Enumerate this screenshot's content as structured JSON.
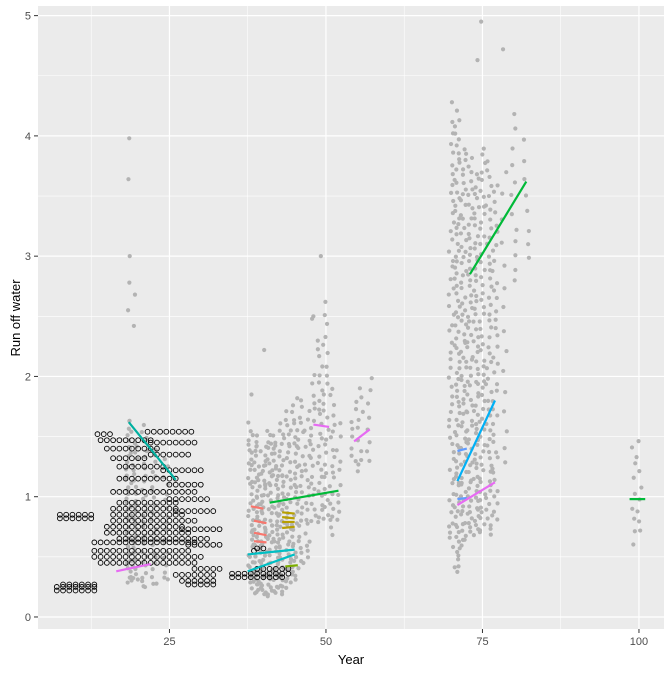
{
  "chart_data": {
    "type": "scatter",
    "title": "",
    "xlabel": "Year",
    "ylabel": "Run off water",
    "xlim": [
      4,
      104
    ],
    "ylim": [
      -0.1,
      5.08
    ],
    "x_ticks": [
      25,
      50,
      75,
      100
    ],
    "y_ticks": [
      0,
      1,
      2,
      3,
      4,
      5
    ],
    "grid": true,
    "legend": "none",
    "colors": {
      "panel_background": "#ebebeb",
      "gridline": "#ffffff",
      "grey_points": "#b3b3b3",
      "open_points": "#000000"
    },
    "grey_point_columns": [
      {
        "x": 18.5,
        "ymin": 0.28,
        "ymax": 1.65,
        "n": 44,
        "outliers": [
          3.98,
          3.64,
          3.0,
          2.78,
          2.55
        ]
      },
      {
        "x": 19.5,
        "ymin": 0.3,
        "ymax": 1.45,
        "n": 30,
        "outliers": [
          2.68,
          2.42
        ]
      },
      {
        "x": 21.0,
        "ymin": 0.24,
        "ymax": 1.6,
        "n": 30,
        "outliers": []
      },
      {
        "x": 22.5,
        "ymin": 0.26,
        "ymax": 1.4,
        "n": 22,
        "outliers": []
      },
      {
        "x": 24.5,
        "ymin": 0.3,
        "ymax": 1.3,
        "n": 18,
        "outliers": []
      },
      {
        "x": 38.0,
        "ymin": 0.25,
        "ymax": 1.6,
        "n": 40,
        "outliers": [
          1.85
        ]
      },
      {
        "x": 39.0,
        "ymin": 0.2,
        "ymax": 1.5,
        "n": 45,
        "outliers": []
      },
      {
        "x": 40.0,
        "ymin": 0.18,
        "ymax": 1.4,
        "n": 45,
        "outliers": [
          2.22
        ]
      },
      {
        "x": 41.0,
        "ymin": 0.18,
        "ymax": 1.55,
        "n": 40,
        "outliers": []
      },
      {
        "x": 42.0,
        "ymin": 0.2,
        "ymax": 1.5,
        "n": 40,
        "outliers": []
      },
      {
        "x": 43.0,
        "ymin": 0.2,
        "ymax": 1.6,
        "n": 40,
        "outliers": []
      },
      {
        "x": 44.0,
        "ymin": 0.25,
        "ymax": 1.7,
        "n": 35,
        "outliers": []
      },
      {
        "x": 45.0,
        "ymin": 0.3,
        "ymax": 1.8,
        "n": 35,
        "outliers": []
      },
      {
        "x": 46.0,
        "ymin": 0.4,
        "ymax": 1.8,
        "n": 25,
        "outliers": []
      },
      {
        "x": 47.0,
        "ymin": 0.5,
        "ymax": 1.7,
        "n": 20,
        "outliers": []
      },
      {
        "x": 48.0,
        "ymin": 0.8,
        "ymax": 2.0,
        "n": 20,
        "outliers": [
          2.48,
          2.5
        ]
      },
      {
        "x": 49.0,
        "ymin": 0.8,
        "ymax": 2.3,
        "n": 25,
        "outliers": [
          3.0
        ]
      },
      {
        "x": 50.0,
        "ymin": 0.8,
        "ymax": 2.5,
        "n": 25,
        "outliers": [
          2.62
        ]
      },
      {
        "x": 51.0,
        "ymin": 0.7,
        "ymax": 1.9,
        "n": 20,
        "outliers": []
      },
      {
        "x": 52.0,
        "ymin": 0.8,
        "ymax": 1.6,
        "n": 10,
        "outliers": []
      },
      {
        "x": 54.5,
        "ymin": 1.3,
        "ymax": 1.8,
        "n": 8,
        "outliers": []
      },
      {
        "x": 55.5,
        "ymin": 1.2,
        "ymax": 1.9,
        "n": 10,
        "outliers": []
      },
      {
        "x": 57.0,
        "ymin": 1.3,
        "ymax": 2.0,
        "n": 8,
        "outliers": []
      },
      {
        "x": 70.0,
        "ymin": 0.6,
        "ymax": 4.1,
        "n": 50,
        "outliers": [
          4.28
        ]
      },
      {
        "x": 71.0,
        "ymin": 0.38,
        "ymax": 4.2,
        "n": 80,
        "outliers": []
      },
      {
        "x": 72.0,
        "ymin": 0.6,
        "ymax": 3.9,
        "n": 70,
        "outliers": []
      },
      {
        "x": 73.0,
        "ymin": 0.7,
        "ymax": 3.8,
        "n": 60,
        "outliers": []
      },
      {
        "x": 74.0,
        "ymin": 0.7,
        "ymax": 3.7,
        "n": 60,
        "outliers": [
          4.63
        ]
      },
      {
        "x": 75.0,
        "ymin": 0.7,
        "ymax": 3.9,
        "n": 55,
        "outliers": [
          4.95
        ]
      },
      {
        "x": 76.0,
        "ymin": 0.7,
        "ymax": 3.8,
        "n": 50,
        "outliers": []
      },
      {
        "x": 77.0,
        "ymin": 0.8,
        "ymax": 3.6,
        "n": 40,
        "outliers": []
      },
      {
        "x": 78.5,
        "ymin": 1.3,
        "ymax": 3.7,
        "n": 15,
        "outliers": [
          4.72
        ]
      },
      {
        "x": 80.0,
        "ymin": 2.8,
        "ymax": 4.2,
        "n": 12,
        "outliers": []
      },
      {
        "x": 82.0,
        "ymin": 3.0,
        "ymax": 3.95,
        "n": 8,
        "outliers": []
      },
      {
        "x": 99.0,
        "ymin": 0.62,
        "ymax": 1.4,
        "n": 8,
        "outliers": []
      },
      {
        "x": 100.0,
        "ymin": 0.7,
        "ymax": 1.45,
        "n": 8,
        "outliers": []
      }
    ],
    "open_point_rows": [
      {
        "xs": [
          7,
          8,
          9,
          10,
          11,
          12,
          13
        ],
        "y": 0.22
      },
      {
        "xs": [
          7,
          8,
          9,
          10,
          11,
          12,
          13
        ],
        "y": 0.25
      },
      {
        "xs": [
          8,
          9,
          10,
          11,
          12,
          13
        ],
        "y": 0.27
      },
      {
        "xs": [
          7.5,
          8.5,
          9.5,
          10.5,
          11.5,
          12.5
        ],
        "y": 0.82
      },
      {
        "xs": [
          7.5,
          8.5,
          9.5,
          10.5,
          11.5,
          12.5
        ],
        "y": 0.85
      },
      {
        "xs": [
          13,
          14,
          15,
          16,
          17,
          18,
          19,
          20,
          21,
          22,
          23,
          24,
          25,
          26,
          27,
          28,
          29
        ],
        "y": 0.62
      },
      {
        "xs": [
          13,
          14,
          15,
          16,
          17,
          18,
          19,
          20,
          21,
          22,
          23,
          24,
          25,
          26,
          27,
          28
        ],
        "y": 0.55
      },
      {
        "xs": [
          13,
          14,
          15,
          16,
          17,
          18,
          19,
          20,
          21,
          22,
          23,
          24,
          25,
          26,
          27,
          28,
          29,
          30
        ],
        "y": 0.5
      },
      {
        "xs": [
          14,
          15,
          16,
          17,
          18,
          19,
          20,
          21,
          22,
          23,
          24,
          25,
          26,
          27,
          28,
          29
        ],
        "y": 0.45
      },
      {
        "xs": [
          15,
          16,
          17,
          18,
          19,
          20,
          21,
          22,
          23,
          24,
          25,
          26,
          27,
          28
        ],
        "y": 0.7
      },
      {
        "xs": [
          15,
          16,
          17,
          18,
          19,
          20,
          21,
          22,
          23,
          24,
          25,
          26,
          27
        ],
        "y": 0.75
      },
      {
        "xs": [
          16,
          17,
          18,
          19,
          20,
          21,
          22,
          23,
          24,
          25,
          26,
          27,
          28,
          29
        ],
        "y": 0.8
      },
      {
        "xs": [
          16,
          17,
          18,
          19,
          20,
          21,
          22,
          23,
          24,
          25,
          26,
          27
        ],
        "y": 0.85
      },
      {
        "xs": [
          16,
          17,
          18,
          19,
          20,
          21,
          22,
          23,
          24,
          25,
          26
        ],
        "y": 0.9
      },
      {
        "xs": [
          17,
          18,
          19,
          20,
          21,
          22,
          23,
          24,
          25,
          26,
          27,
          28,
          29,
          30,
          31
        ],
        "y": 0.65
      },
      {
        "xs": [
          17,
          18,
          19,
          20,
          21,
          22,
          23,
          24,
          25,
          26
        ],
        "y": 0.95
      },
      {
        "xs": [
          16,
          17,
          18,
          19,
          20,
          21,
          22,
          23,
          24,
          25,
          26,
          27,
          28,
          29
        ],
        "y": 1.04
      },
      {
        "xs": [
          17,
          18,
          19,
          20,
          21,
          22,
          23,
          24,
          25,
          26
        ],
        "y": 1.15
      },
      {
        "xs": [
          17,
          18,
          19,
          20,
          21,
          22,
          23,
          24
        ],
        "y": 1.25
      },
      {
        "xs": [
          16,
          17,
          18,
          19,
          20,
          21
        ],
        "y": 1.32
      },
      {
        "xs": [
          15,
          16,
          17,
          18,
          19,
          20,
          21,
          22,
          23
        ],
        "y": 1.4
      },
      {
        "xs": [
          14,
          15,
          16,
          17,
          18,
          19,
          20,
          21,
          22
        ],
        "y": 1.47
      },
      {
        "xs": [
          13.5,
          14.5,
          15.5
        ],
        "y": 1.52
      },
      {
        "xs": [
          21.5,
          22.5,
          23.5,
          24.5,
          25.5,
          26.5,
          27.5,
          28.5
        ],
        "y": 1.54
      },
      {
        "xs": [
          22,
          23,
          24,
          25,
          26,
          27,
          28,
          29
        ],
        "y": 1.45
      },
      {
        "xs": [
          22,
          23,
          24,
          25,
          26,
          27,
          28
        ],
        "y": 1.35
      },
      {
        "xs": [
          24,
          25,
          26,
          27,
          28,
          29,
          30
        ],
        "y": 1.22
      },
      {
        "xs": [
          25,
          26,
          27,
          28,
          29,
          30
        ],
        "y": 1.1
      },
      {
        "xs": [
          25,
          26,
          27,
          28,
          29,
          30,
          31
        ],
        "y": 0.98
      },
      {
        "xs": [
          26,
          27,
          28,
          29,
          30,
          31,
          32
        ],
        "y": 0.88
      },
      {
        "xs": [
          27,
          28,
          29,
          30,
          31,
          32,
          33
        ],
        "y": 0.73
      },
      {
        "xs": [
          28,
          29,
          30,
          31,
          32,
          33
        ],
        "y": 0.6
      },
      {
        "xs": [
          29,
          30,
          31,
          32,
          33
        ],
        "y": 0.4
      },
      {
        "xs": [
          26,
          27,
          28,
          29,
          30,
          31,
          32
        ],
        "y": 0.35
      },
      {
        "xs": [
          27,
          28,
          29,
          30,
          31,
          32
        ],
        "y": 0.3
      },
      {
        "xs": [
          28,
          29,
          30,
          31,
          32
        ],
        "y": 0.27
      },
      {
        "xs": [
          38.5
        ],
        "y": 0.55
      },
      {
        "xs": [
          39,
          40
        ],
        "y": 0.57
      },
      {
        "xs": [
          35,
          36,
          37,
          38,
          39,
          40,
          41,
          42,
          43
        ],
        "y": 0.33
      },
      {
        "xs": [
          35,
          36,
          37,
          38,
          39,
          40,
          41,
          42,
          43,
          44
        ],
        "y": 0.36
      },
      {
        "xs": [
          39,
          40,
          41,
          42,
          43,
          44
        ],
        "y": 0.4
      }
    ],
    "series": [
      {
        "color": "#00b0a0",
        "x": [
          18.5,
          26.0
        ],
        "y": [
          1.62,
          1.14
        ]
      },
      {
        "color": "#e76bf3",
        "x": [
          16.5,
          22.0
        ],
        "y": [
          0.38,
          0.44
        ]
      },
      {
        "color": "#00bfc4",
        "x": [
          37.5,
          45.0
        ],
        "y": [
          0.38,
          0.52
        ]
      },
      {
        "color": "#00bfc4",
        "x": [
          37.5,
          45.0
        ],
        "y": [
          0.52,
          0.56
        ]
      },
      {
        "color": "#00ba38",
        "x": [
          41.0,
          52.0
        ],
        "y": [
          0.95,
          1.05
        ]
      },
      {
        "color": "#f8766d",
        "x": [
          38.0,
          40.0
        ],
        "y": [
          0.92,
          0.9
        ]
      },
      {
        "color": "#f8766d",
        "x": [
          38.5,
          40.5
        ],
        "y": [
          0.8,
          0.78
        ]
      },
      {
        "color": "#f8766d",
        "x": [
          38.5,
          40.5
        ],
        "y": [
          0.7,
          0.68
        ]
      },
      {
        "color": "#f8766d",
        "x": [
          38.5,
          40.5
        ],
        "y": [
          0.63,
          0.62
        ]
      },
      {
        "color": "#b79f00",
        "x": [
          43.0,
          45.0
        ],
        "y": [
          0.87,
          0.86
        ]
      },
      {
        "color": "#b79f00",
        "x": [
          43.0,
          45.0
        ],
        "y": [
          0.83,
          0.82
        ]
      },
      {
        "color": "#b79f00",
        "x": [
          43.0,
          45.0
        ],
        "y": [
          0.79,
          0.79
        ]
      },
      {
        "color": "#b79f00",
        "x": [
          43.0,
          45.0
        ],
        "y": [
          0.74,
          0.75
        ]
      },
      {
        "color": "#7cae00",
        "x": [
          43.5,
          45.5
        ],
        "y": [
          0.42,
          0.43
        ]
      },
      {
        "color": "#e76bf3",
        "x": [
          48.0,
          50.5
        ],
        "y": [
          1.6,
          1.58
        ]
      },
      {
        "color": "#e76bf3",
        "x": [
          54.5,
          57.0
        ],
        "y": [
          1.46,
          1.56
        ]
      },
      {
        "color": "#00ba38",
        "x": [
          73.0,
          82.0
        ],
        "y": [
          2.85,
          3.62
        ]
      },
      {
        "color": "#00b0f6",
        "x": [
          71.0,
          77.0
        ],
        "y": [
          1.13,
          1.8
        ]
      },
      {
        "color": "#619cff",
        "x": [
          71.0,
          72.5
        ],
        "y": [
          1.38,
          1.4
        ]
      },
      {
        "color": "#619cff",
        "x": [
          71.0,
          72.5
        ],
        "y": [
          0.98,
          0.99
        ]
      },
      {
        "color": "#e76bf3",
        "x": [
          71.0,
          77.0
        ],
        "y": [
          0.93,
          1.12
        ]
      },
      {
        "color": "#00ba38",
        "x": [
          98.5,
          101.0
        ],
        "y": [
          0.98,
          0.98
        ]
      }
    ]
  }
}
